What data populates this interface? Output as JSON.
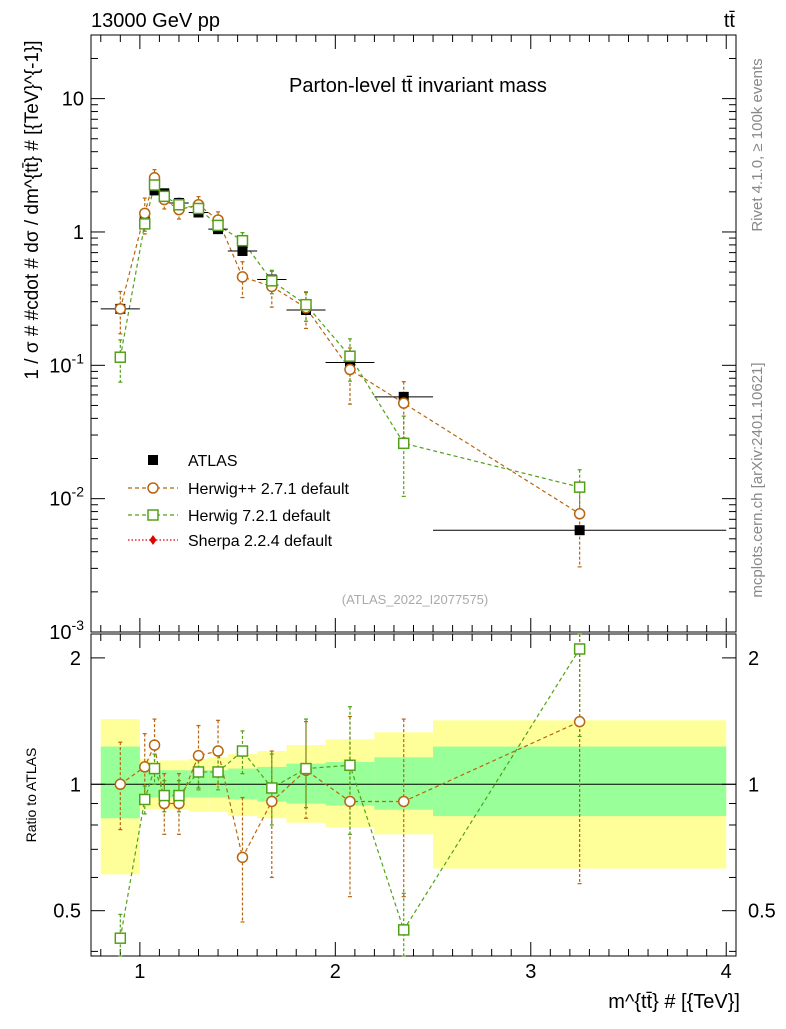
{
  "header": {
    "left": "13000 GeV pp",
    "right": "tt̄"
  },
  "side_labels": {
    "rivet": "Rivet 4.1.0, ≥ 100k events",
    "mcplots": "mcplots.cern.ch [arXiv:2401.10621]"
  },
  "chart_data": [
    {
      "type": "scatter",
      "title": "Parton-level tt̄ invariant mass",
      "watermark": "(ATLAS_2022_I2077575)",
      "ylabel": "1 / σ # #cdot # dσ / dm^{tt̄} # [{TeV}^{-1}]",
      "xlabel": "",
      "xlim": [
        0.75,
        4.05
      ],
      "ylim": [
        0.001,
        30
      ],
      "yscale": "log",
      "ytick_labels": [
        "10^-3",
        "10^-2",
        "10^-1",
        "1",
        "10"
      ],
      "series": [
        {
          "name": "ATLAS",
          "style": "data",
          "color": "#000000",
          "x": [
            0.9,
            1.025,
            1.075,
            1.125,
            1.2,
            1.3,
            1.4,
            1.525,
            1.675,
            1.85,
            2.075,
            2.35,
            3.25
          ],
          "xerr": [
            0.1,
            0.025,
            0.025,
            0.025,
            0.05,
            0.05,
            0.05,
            0.075,
            0.075,
            0.1,
            0.125,
            0.15,
            0.75
          ],
          "y": [
            0.265,
            1.25,
            2.05,
            1.95,
            1.65,
            1.4,
            1.05,
            0.72,
            0.44,
            0.26,
            0.105,
            0.058,
            0.0058
          ]
        },
        {
          "name": "Herwig++ 2.7.1 default",
          "style": "circle",
          "color": "#b8650f",
          "x": [
            0.9,
            1.025,
            1.075,
            1.125,
            1.2,
            1.3,
            1.4,
            1.525,
            1.675,
            1.85,
            2.075,
            2.35,
            3.25
          ],
          "y": [
            0.265,
            1.38,
            2.55,
            1.75,
            1.47,
            1.6,
            1.23,
            0.46,
            0.39,
            0.27,
            0.093,
            0.052,
            0.0077
          ],
          "yerr_rel": [
            0.35,
            0.3,
            0.15,
            0.15,
            0.15,
            0.15,
            0.15,
            0.3,
            0.3,
            0.3,
            0.45,
            0.45,
            0.6
          ]
        },
        {
          "name": "Herwig 7.2.1 default",
          "style": "square",
          "color": "#52a01a",
          "x": [
            0.9,
            1.025,
            1.075,
            1.125,
            1.2,
            1.3,
            1.4,
            1.525,
            1.675,
            1.85,
            2.075,
            2.35,
            3.25
          ],
          "y": [
            0.115,
            1.15,
            2.25,
            1.85,
            1.6,
            1.5,
            1.12,
            0.86,
            0.43,
            0.285,
            0.117,
            0.026,
            0.0122
          ],
          "yerr_rel": [
            0.35,
            0.12,
            0.12,
            0.12,
            0.12,
            0.12,
            0.12,
            0.15,
            0.2,
            0.25,
            0.35,
            0.6,
            0.35
          ]
        },
        {
          "name": "Sherpa 2.2.4 default",
          "style": "diamond",
          "color": "#e00000",
          "x": [],
          "y": []
        }
      ]
    },
    {
      "type": "scatter",
      "title": "",
      "xlabel": "m^{tt̄} # [{TeV}]",
      "ylabel": "Ratio to ATLAS",
      "xlim": [
        0.75,
        4.05
      ],
      "ylim": [
        0.39,
        2.28
      ],
      "yscale": "log",
      "xticks": [
        1,
        2,
        3,
        4
      ],
      "xtick_labels": [
        "1",
        "2",
        "3",
        "4"
      ],
      "yticks": [
        0.5,
        1,
        2
      ],
      "ytick_labels": [
        "0.5",
        "1",
        "2"
      ],
      "bands": {
        "x_edges": [
          0.8,
          1.0,
          1.05,
          1.1,
          1.15,
          1.25,
          1.35,
          1.45,
          1.6,
          1.75,
          1.95,
          2.2,
          2.5,
          4.0
        ],
        "stat_low": [
          0.83,
          0.9,
          0.93,
          0.93,
          0.93,
          0.93,
          0.93,
          0.92,
          0.91,
          0.9,
          0.89,
          0.87,
          0.84
        ],
        "stat_high": [
          1.23,
          1.11,
          1.08,
          1.08,
          1.08,
          1.08,
          1.08,
          1.09,
          1.1,
          1.12,
          1.13,
          1.16,
          1.23
        ],
        "total_low": [
          0.61,
          0.87,
          0.87,
          0.87,
          0.87,
          0.86,
          0.86,
          0.84,
          0.83,
          0.81,
          0.79,
          0.76,
          0.63
        ],
        "total_high": [
          1.43,
          1.15,
          1.13,
          1.14,
          1.14,
          1.15,
          1.16,
          1.18,
          1.2,
          1.24,
          1.28,
          1.33,
          1.42
        ],
        "stat_color": "#99ff99",
        "total_color": "#ffff99"
      },
      "series": [
        {
          "name": "Herwig++ 2.7.1 default",
          "style": "circle",
          "color": "#b8650f",
          "x": [
            0.9,
            1.025,
            1.075,
            1.125,
            1.2,
            1.3,
            1.4,
            1.525,
            1.675,
            1.85,
            2.075,
            2.35,
            3.25
          ],
          "y": [
            1.0,
            1.1,
            1.24,
            0.9,
            0.9,
            1.17,
            1.2,
            0.67,
            0.91,
            1.08,
            0.91,
            0.91,
            1.41
          ],
          "ylow": [
            0.78,
            0.92,
            1.07,
            0.76,
            0.76,
            0.98,
            1.0,
            0.47,
            0.6,
            0.83,
            0.54,
            0.54,
            0.58
          ],
          "yhigh": [
            1.26,
            1.32,
            1.43,
            1.06,
            1.06,
            1.38,
            1.42,
            0.93,
            1.2,
            1.41,
            1.45,
            1.43,
            2.28
          ]
        },
        {
          "name": "Herwig 7.2.1 default",
          "style": "square",
          "color": "#52a01a",
          "x": [
            0.9,
            1.025,
            1.075,
            1.125,
            1.2,
            1.3,
            1.4,
            1.525,
            1.675,
            1.85,
            2.075,
            2.35,
            3.25
          ],
          "y": [
            0.43,
            0.92,
            1.09,
            0.94,
            0.94,
            1.07,
            1.07,
            1.2,
            0.98,
            1.09,
            1.11,
            0.45,
            2.1
          ],
          "ylow": [
            0.38,
            0.85,
            1.0,
            0.86,
            0.86,
            0.97,
            0.97,
            1.06,
            0.8,
            0.88,
            0.76,
            0.38,
            1.3
          ],
          "yhigh": [
            0.49,
            0.99,
            1.18,
            1.02,
            1.02,
            1.17,
            1.17,
            1.34,
            1.18,
            1.43,
            1.53,
            0.55,
            2.28
          ]
        }
      ]
    }
  ]
}
